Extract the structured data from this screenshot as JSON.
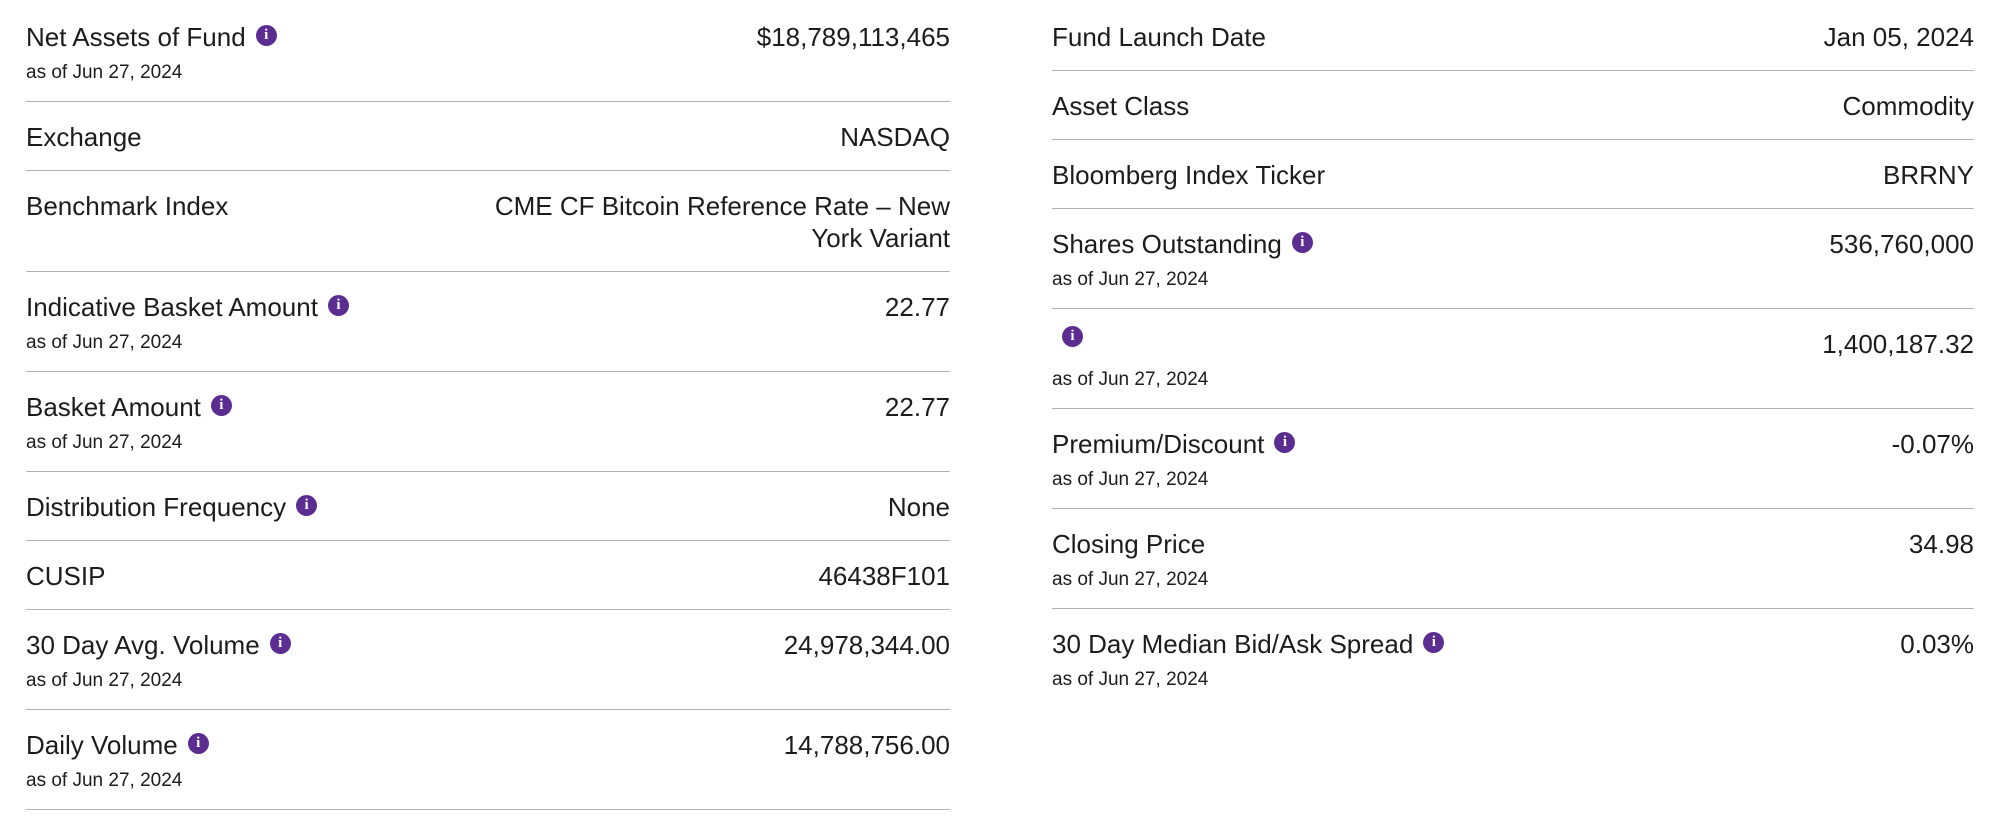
{
  "meta": {
    "info_glyph": "i",
    "accent_color": "#5C2D91",
    "divider_color": "#B3B3B3",
    "text_color": "#1C1C1E"
  },
  "left_column": [
    {
      "label": "Net Assets of Fund",
      "value": "$18,789,113,465",
      "as_of": "as of Jun 27, 2024"
    },
    {
      "label": "Exchange",
      "value": "NASDAQ"
    },
    {
      "label": "Benchmark Index",
      "value": "CME CF Bitcoin Reference Rate – New York Variant"
    },
    {
      "label": "Indicative Basket Amount",
      "value": "22.77",
      "as_of": "as of Jun 27, 2024"
    },
    {
      "label": "Basket Amount",
      "value": "22.77",
      "as_of": "as of Jun 27, 2024"
    },
    {
      "label": "Distribution Frequency",
      "value": "None"
    },
    {
      "label": "CUSIP",
      "value": "46438F101"
    },
    {
      "label": "30 Day Avg. Volume",
      "value": "24,978,344.00",
      "as_of": "as of Jun 27, 2024"
    },
    {
      "label": "Daily Volume",
      "value": "14,788,756.00",
      "as_of": "as of Jun 27, 2024"
    }
  ],
  "right_column": [
    {
      "label": "Fund Launch Date",
      "value": "Jan 05, 2024"
    },
    {
      "label": "Asset Class",
      "value": "Commodity"
    },
    {
      "label": "Bloomberg Index Ticker",
      "value": "BRRNY"
    },
    {
      "label": "Shares Outstanding",
      "value": "536,760,000",
      "as_of": "as of Jun 27, 2024"
    },
    {
      "label": "",
      "value": "1,400,187.32",
      "as_of": "as of Jun 27, 2024"
    },
    {
      "label": "Premium/Discount",
      "value": "-0.07%",
      "as_of": "as of Jun 27, 2024"
    },
    {
      "label": "Closing Price",
      "value": "34.98",
      "as_of": "as of Jun 27, 2024"
    },
    {
      "label": "30 Day Median Bid/Ask Spread",
      "value": "0.03%",
      "as_of": "as of Jun 27, 2024"
    }
  ]
}
